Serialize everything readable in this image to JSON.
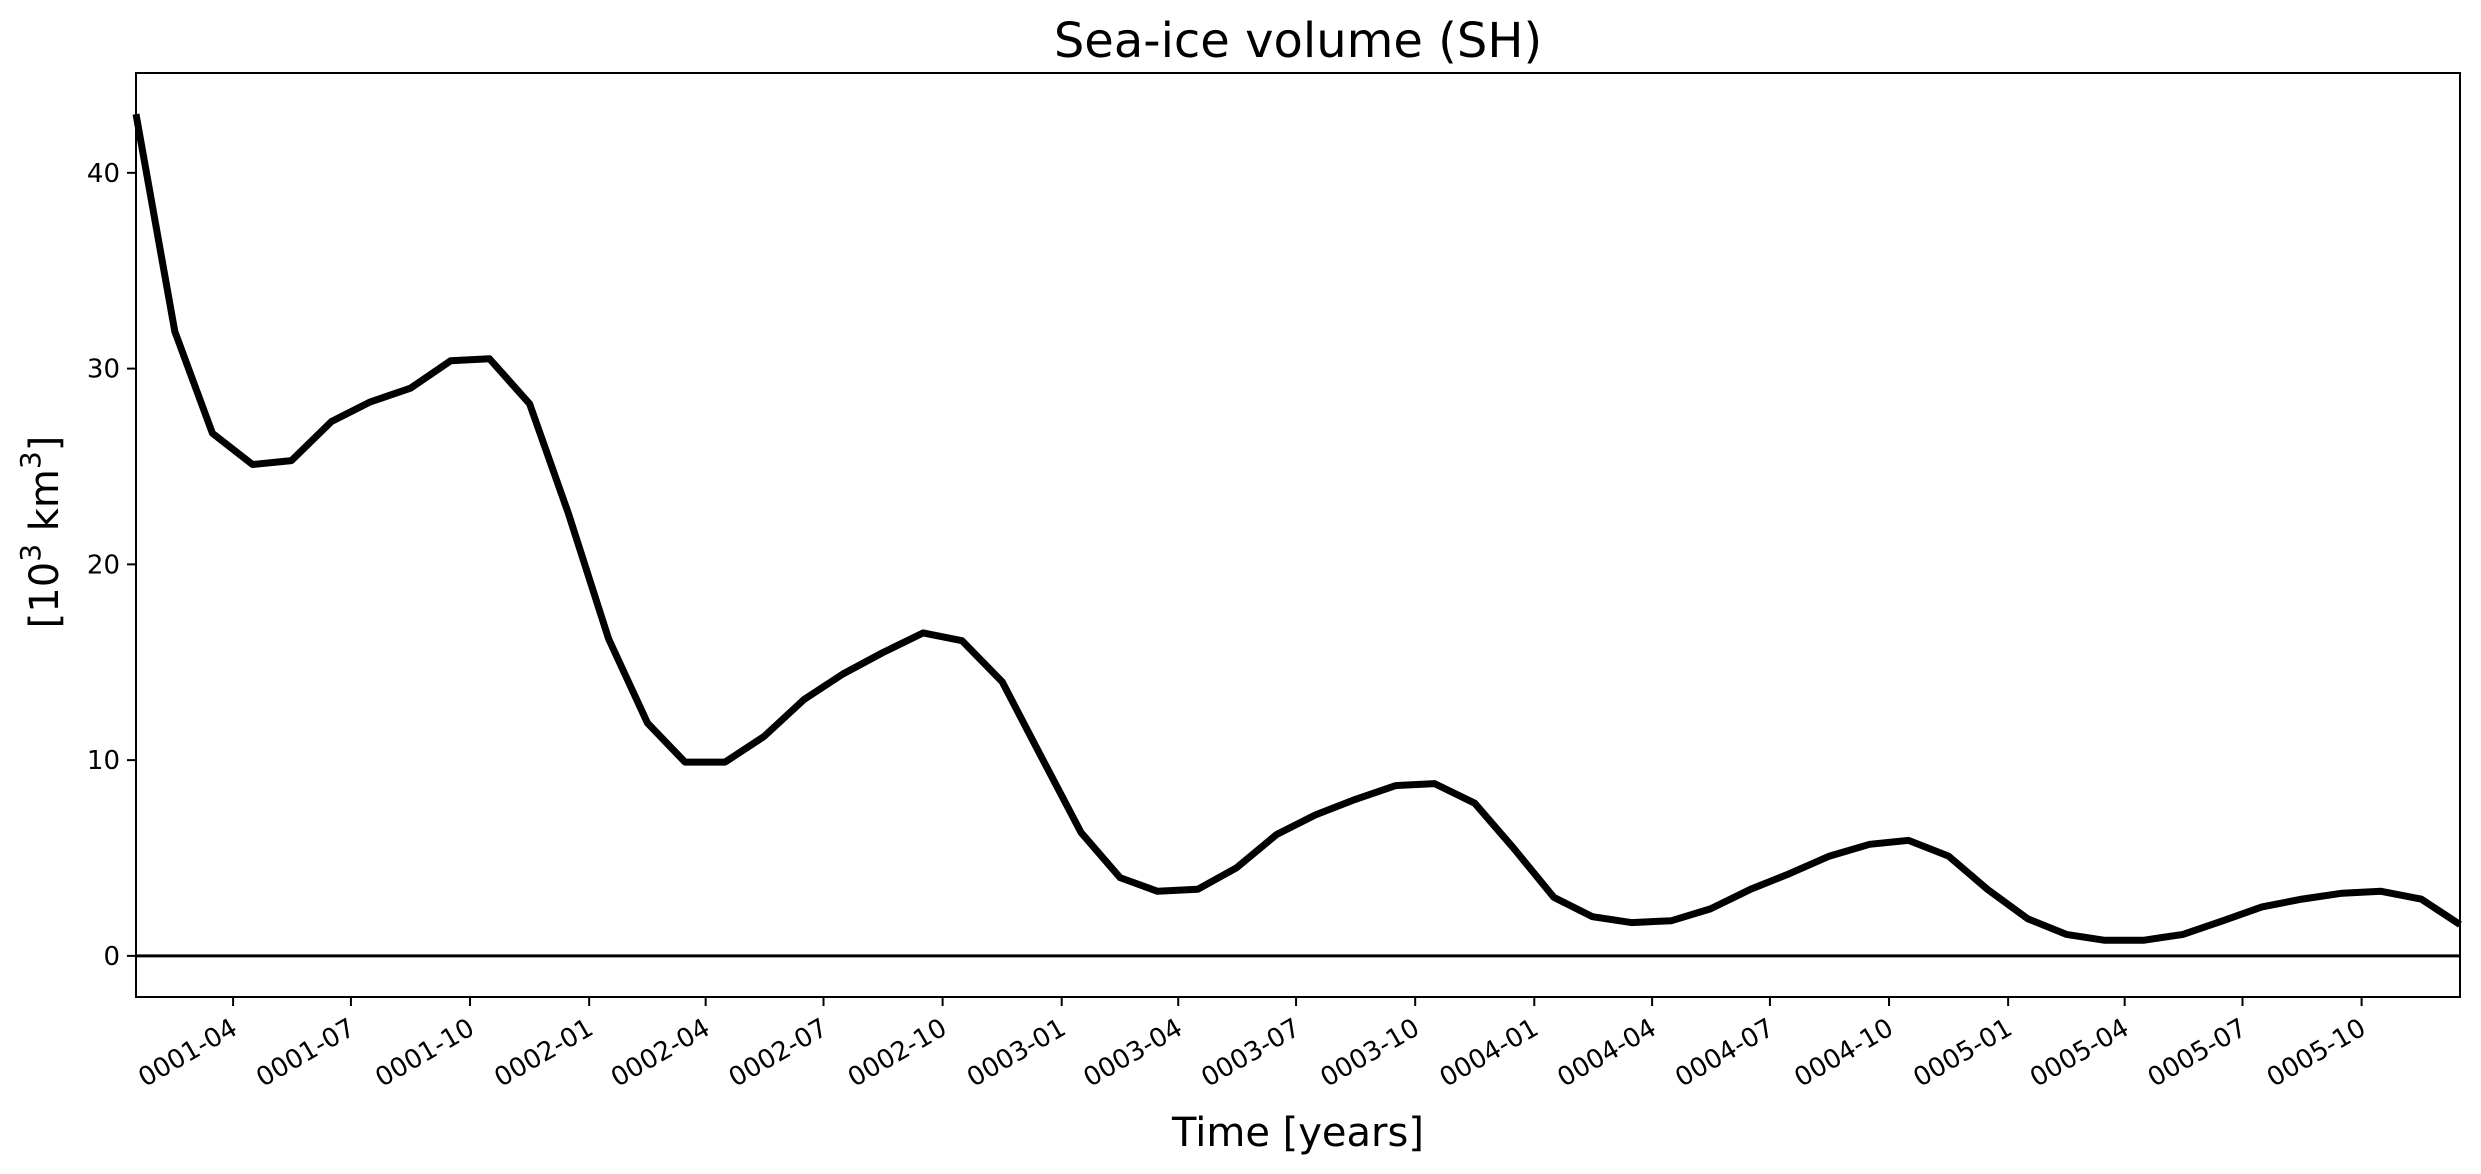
{
  "chart_data": {
    "type": "line",
    "title": "Sea-ice volume (SH)",
    "xlabel": "Time [years]",
    "ylabel": {
      "prefix": "[10",
      "exp1": "3",
      "middle": " km",
      "exp2": "3",
      "suffix": "]"
    },
    "x_ticks": [
      {
        "date": "0001-04-01",
        "label": "0001-04"
      },
      {
        "date": "0001-07-01",
        "label": "0001-07"
      },
      {
        "date": "0001-10-01",
        "label": "0001-10"
      },
      {
        "date": "0002-01-01",
        "label": "0002-01"
      },
      {
        "date": "0002-04-01",
        "label": "0002-04"
      },
      {
        "date": "0002-07-01",
        "label": "0002-07"
      },
      {
        "date": "0002-10-01",
        "label": "0002-10"
      },
      {
        "date": "0003-01-01",
        "label": "0003-01"
      },
      {
        "date": "0003-04-01",
        "label": "0003-04"
      },
      {
        "date": "0003-07-01",
        "label": "0003-07"
      },
      {
        "date": "0003-10-01",
        "label": "0003-10"
      },
      {
        "date": "0004-01-01",
        "label": "0004-01"
      },
      {
        "date": "0004-04-01",
        "label": "0004-04"
      },
      {
        "date": "0004-07-01",
        "label": "0004-07"
      },
      {
        "date": "0004-10-01",
        "label": "0004-10"
      },
      {
        "date": "0005-01-01",
        "label": "0005-01"
      },
      {
        "date": "0005-04-01",
        "label": "0005-04"
      },
      {
        "date": "0005-07-01",
        "label": "0005-07"
      },
      {
        "date": "0005-10-01",
        "label": "0005-10"
      }
    ],
    "y_ticks": [
      0,
      10,
      20,
      30,
      40
    ],
    "xlim": [
      "0001-01-16",
      "0005-12-16"
    ],
    "ylim": [
      -2.1,
      45.1
    ],
    "grid": false,
    "reference_line": 0,
    "line_color": "#000000",
    "x": [
      "0001-01-16",
      "0001-02-15",
      "0001-03-16",
      "0001-04-16",
      "0001-05-16",
      "0001-06-16",
      "0001-07-16",
      "0001-08-16",
      "0001-09-16",
      "0001-10-16",
      "0001-11-16",
      "0001-12-16",
      "0002-01-16",
      "0002-02-15",
      "0002-03-16",
      "0002-04-16",
      "0002-05-16",
      "0002-06-16",
      "0002-07-16",
      "0002-08-16",
      "0002-09-16",
      "0002-10-16",
      "0002-11-16",
      "0002-12-16",
      "0003-01-16",
      "0003-02-15",
      "0003-03-16",
      "0003-04-16",
      "0003-05-16",
      "0003-06-16",
      "0003-07-16",
      "0003-08-16",
      "0003-09-16",
      "0003-10-16",
      "0003-11-16",
      "0003-12-16",
      "0004-01-16",
      "0004-02-15",
      "0004-03-16",
      "0004-04-16",
      "0004-05-16",
      "0004-06-16",
      "0004-07-16",
      "0004-08-16",
      "0004-09-16",
      "0004-10-16",
      "0004-11-16",
      "0004-12-16",
      "0005-01-16",
      "0005-02-15",
      "0005-03-16",
      "0005-04-16",
      "0005-05-16",
      "0005-06-16",
      "0005-07-16",
      "0005-08-16",
      "0005-09-16",
      "0005-10-16",
      "0005-11-16",
      "0005-12-16"
    ],
    "y": [
      43.0,
      31.9,
      26.7,
      25.1,
      25.3,
      27.3,
      28.3,
      29.0,
      30.4,
      30.5,
      28.2,
      22.6,
      16.2,
      11.9,
      9.9,
      9.9,
      11.2,
      13.1,
      14.4,
      15.5,
      16.5,
      16.1,
      14.0,
      10.2,
      6.3,
      4.0,
      3.3,
      3.4,
      4.5,
      6.2,
      7.2,
      8.0,
      8.7,
      8.8,
      7.8,
      5.5,
      3.0,
      2.0,
      1.7,
      1.8,
      2.4,
      3.4,
      4.2,
      5.1,
      5.7,
      5.9,
      5.1,
      3.4,
      1.9,
      1.1,
      0.8,
      0.8,
      1.1,
      1.8,
      2.5,
      2.9,
      3.2,
      3.3,
      2.9,
      1.6
    ]
  }
}
